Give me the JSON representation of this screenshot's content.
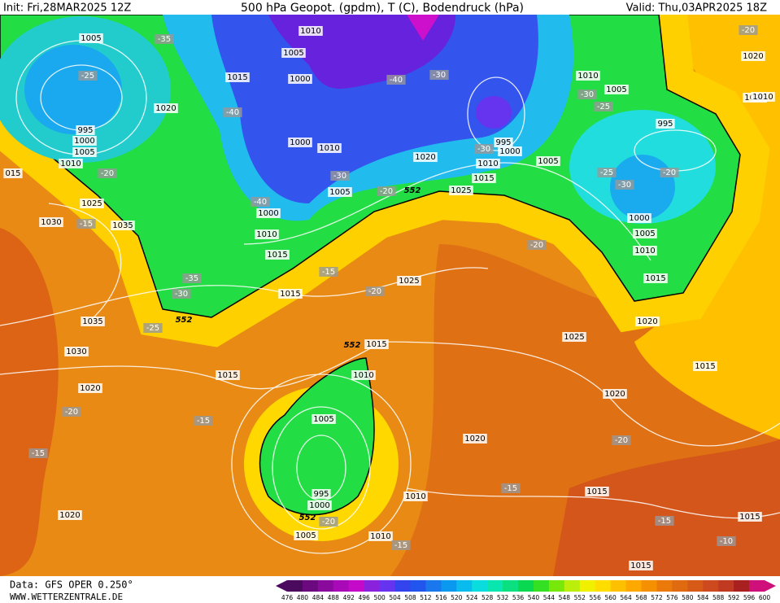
{
  "header": {
    "init": "Init: Fri,28MAR2025 12Z",
    "title": "500 hPa Geopot. (gpdm), T (C), Bodendruck (hPa)",
    "valid": "Valid: Thu,03APR2025 18Z"
  },
  "footer": {
    "source": "Data: GFS OPER 0.250°",
    "website": "WWW.WETTERZENTRALE.DE"
  },
  "colorbar": {
    "labels": [
      "476",
      "480",
      "484",
      "488",
      "492",
      "496",
      "500",
      "504",
      "508",
      "512",
      "516",
      "520",
      "524",
      "528",
      "532",
      "536",
      "540",
      "544",
      "548",
      "552",
      "556",
      "560",
      "564",
      "568",
      "572",
      "576",
      "580",
      "584",
      "588",
      "592",
      "596",
      "600"
    ],
    "colors": [
      "#4b0a5e",
      "#6a0a7e",
      "#8a0a9e",
      "#a80ab8",
      "#c40ac8",
      "#8a22dd",
      "#6633ee",
      "#3344ee",
      "#2255ee",
      "#1a77ee",
      "#0a99ee",
      "#0abbee",
      "#0adddd",
      "#0ae6b0",
      "#0ae080",
      "#0ad850",
      "#33e022",
      "#77e80a",
      "#bbee0a",
      "#f0f000",
      "#ffdd00",
      "#ffc000",
      "#ffa800",
      "#f59000",
      "#ec7a0a",
      "#e06a10",
      "#d85a18",
      "#cc4a1e",
      "#c03a22",
      "#a82020",
      "#d0107a"
    ]
  },
  "map_labels": [
    "1005",
    "-35",
    "1010",
    "1005",
    "-25",
    "1015",
    "1000",
    "-40",
    "-30",
    "1010",
    "1005",
    "-30",
    "1020",
    "-40",
    "-25",
    "995",
    "1000",
    "1005",
    "995",
    "1000",
    "995",
    "1000",
    "1010",
    "-30",
    "1010",
    "1005",
    "1020",
    "1010",
    "-20",
    "-30",
    "1015",
    "-25",
    "-20",
    "1020",
    "-30",
    "1005",
    "-20",
    "552",
    "1025",
    "1025",
    "-40",
    "1000",
    "1030",
    "-15",
    "1035",
    "1000",
    "1010",
    "1005",
    "-20",
    "1010",
    "1015",
    "1015",
    "-35",
    "-15",
    "-30",
    "1015",
    "-20",
    "1025",
    "552",
    "-25",
    "1035",
    "1020",
    "1025",
    "552",
    "1015",
    "1030",
    "1010",
    "1015",
    "1015",
    "1020",
    "1020",
    "-20",
    "1005",
    "-15",
    "1020",
    "-20",
    "-15",
    "995",
    "1000",
    "-15",
    "1015",
    "1010",
    "1020",
    "552",
    "-20",
    "-15",
    "1015",
    "1005",
    "1010",
    "-15",
    "-10",
    "1015",
    "-20",
    "1020",
    "1010",
    "015"
  ]
}
